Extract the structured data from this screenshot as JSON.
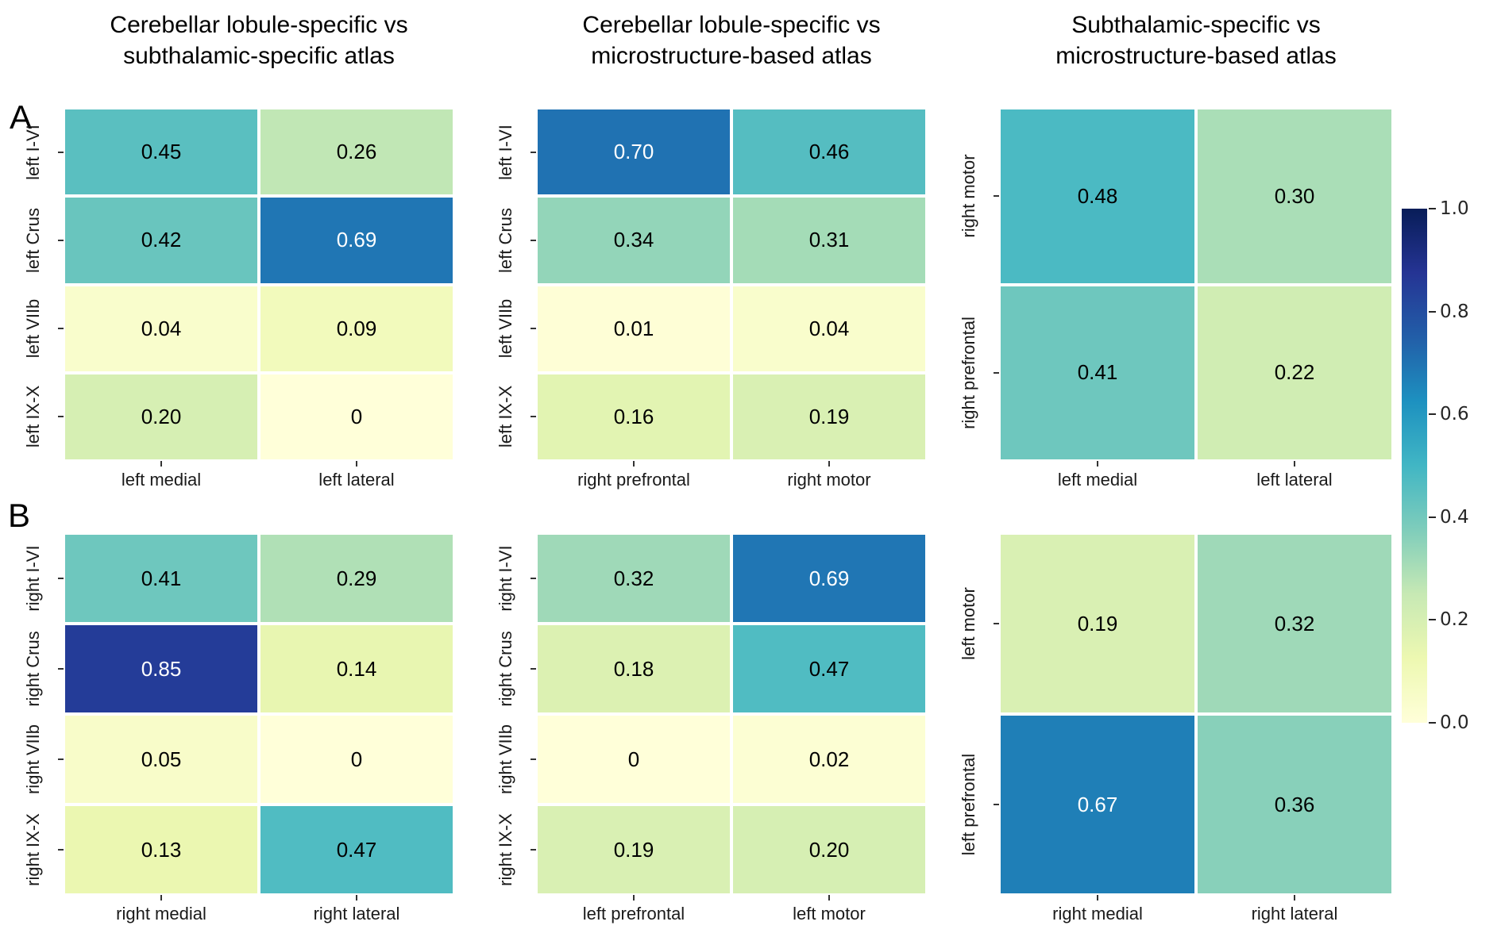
{
  "figure": {
    "background": "#ffffff"
  },
  "colors": {
    "annotation_dark": "#000000",
    "annotation_light": "#ffffff",
    "tick_label": "#1a1a1a",
    "tick_mark": "#333333",
    "light_text_threshold": 0.6,
    "colormap_name": "YlGnBu",
    "colormap_stops": [
      [
        0.0,
        "#ffffd9"
      ],
      [
        0.125,
        "#edf8b1"
      ],
      [
        0.25,
        "#c7e9b4"
      ],
      [
        0.375,
        "#7fcdbb"
      ],
      [
        0.5,
        "#41b6c4"
      ],
      [
        0.625,
        "#1d91c0"
      ],
      [
        0.75,
        "#225ea8"
      ],
      [
        0.875,
        "#253494"
      ],
      [
        1.0,
        "#081d58"
      ]
    ]
  },
  "panels": [
    {
      "label": "A"
    },
    {
      "label": "B"
    }
  ],
  "column_titles": [
    {
      "line1": "Cerebellar lobule-specific vs",
      "line2": "subthalamic-specific atlas"
    },
    {
      "line1": "Cerebellar lobule-specific vs",
      "line2": "microstructure-based atlas"
    },
    {
      "line1": "Subthalamic-specific vs",
      "line2": "microstructure-based atlas"
    }
  ],
  "colorbar": {
    "min": 0.0,
    "max": 1.0,
    "tick_values": [
      1.0,
      0.8,
      0.6,
      0.4,
      0.2,
      0.0
    ],
    "tick_labels": [
      "1.0",
      "0.8",
      "0.6",
      "0.4",
      "0.2",
      "0.0"
    ]
  },
  "chart_data": [
    {
      "type": "heatmap",
      "panel": "A",
      "title": "Cerebellar lobule-specific vs subthalamic-specific atlas",
      "y_labels": [
        "left I-VI",
        "left Crus",
        "left VIIb",
        "left IX-X"
      ],
      "x_labels": [
        "left medial",
        "left lateral"
      ],
      "values": [
        [
          0.45,
          0.26
        ],
        [
          0.42,
          0.69
        ],
        [
          0.04,
          0.09
        ],
        [
          0.2,
          0
        ]
      ],
      "labels": [
        [
          "0.45",
          "0.26"
        ],
        [
          "0.42",
          "0.69"
        ],
        [
          "0.04",
          "0.09"
        ],
        [
          "0.20",
          "0"
        ]
      ],
      "vmin": 0,
      "vmax": 1
    },
    {
      "type": "heatmap",
      "panel": "A",
      "title": "Cerebellar lobule-specific vs microstructure-based atlas",
      "y_labels": [
        "left I-VI",
        "left Crus",
        "left VIIb",
        "left IX-X"
      ],
      "x_labels": [
        "right prefrontal",
        "right motor"
      ],
      "values": [
        [
          0.7,
          0.46
        ],
        [
          0.34,
          0.31
        ],
        [
          0.01,
          0.04
        ],
        [
          0.16,
          0.19
        ]
      ],
      "labels": [
        [
          "0.70",
          "0.46"
        ],
        [
          "0.34",
          "0.31"
        ],
        [
          "0.01",
          "0.04"
        ],
        [
          "0.16",
          "0.19"
        ]
      ],
      "vmin": 0,
      "vmax": 1
    },
    {
      "type": "heatmap",
      "panel": "A",
      "title": "Subthalamic-specific vs microstructure-based atlas",
      "y_labels": [
        "right motor",
        "right prefrontal"
      ],
      "x_labels": [
        "left medial",
        "left lateral"
      ],
      "values": [
        [
          0.48,
          0.3
        ],
        [
          0.41,
          0.22
        ]
      ],
      "labels": [
        [
          "0.48",
          "0.30"
        ],
        [
          "0.41",
          "0.22"
        ]
      ],
      "vmin": 0,
      "vmax": 1
    },
    {
      "type": "heatmap",
      "panel": "B",
      "title": "Cerebellar lobule-specific vs subthalamic-specific atlas",
      "y_labels": [
        "right I-VI",
        "right Crus",
        "right VIIb",
        "right IX-X"
      ],
      "x_labels": [
        "right medial",
        "right lateral"
      ],
      "values": [
        [
          0.41,
          0.29
        ],
        [
          0.85,
          0.14
        ],
        [
          0.05,
          0
        ],
        [
          0.13,
          0.47
        ]
      ],
      "labels": [
        [
          "0.41",
          "0.29"
        ],
        [
          "0.85",
          "0.14"
        ],
        [
          "0.05",
          "0"
        ],
        [
          "0.13",
          "0.47"
        ]
      ],
      "vmin": 0,
      "vmax": 1
    },
    {
      "type": "heatmap",
      "panel": "B",
      "title": "Cerebellar lobule-specific vs microstructure-based atlas",
      "y_labels": [
        "right I-VI",
        "right Crus",
        "right VIIb",
        "right IX-X"
      ],
      "x_labels": [
        "left prefrontal",
        "left motor"
      ],
      "values": [
        [
          0.32,
          0.69
        ],
        [
          0.18,
          0.47
        ],
        [
          0,
          0.02
        ],
        [
          0.19,
          0.2
        ]
      ],
      "labels": [
        [
          "0.32",
          "0.69"
        ],
        [
          "0.18",
          "0.47"
        ],
        [
          "0",
          "0.02"
        ],
        [
          "0.19",
          "0.20"
        ]
      ],
      "vmin": 0,
      "vmax": 1
    },
    {
      "type": "heatmap",
      "panel": "B",
      "title": "Subthalamic-specific vs microstructure-based atlas",
      "y_labels": [
        "left motor",
        "left prefrontal"
      ],
      "x_labels": [
        "right medial",
        "right lateral"
      ],
      "values": [
        [
          0.19,
          0.32
        ],
        [
          0.67,
          0.36
        ]
      ],
      "labels": [
        [
          "0.19",
          "0.32"
        ],
        [
          "0.67",
          "0.36"
        ]
      ],
      "vmin": 0,
      "vmax": 1
    }
  ]
}
